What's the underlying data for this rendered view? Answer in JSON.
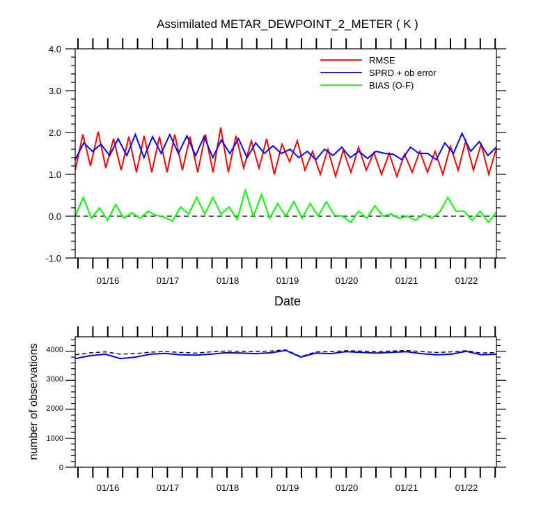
{
  "chart_data": [
    {
      "type": "line",
      "title": "Assimilated METAR_DEWPOINT_2_METER ( K )",
      "xlabel": "Date",
      "ylabel": "",
      "ylim": [
        -1.0,
        4.0
      ],
      "yticks": [
        "4.0",
        "3.0",
        "2.0",
        "1.0",
        "0.0",
        "-1.0"
      ],
      "xticks": [
        "01/16",
        "01/17",
        "01/18",
        "01/19",
        "01/20",
        "01/21",
        "01/22"
      ],
      "legend_position": "top-right",
      "reference_line": {
        "y": 0.0,
        "style": "dashed",
        "color": "#000000"
      },
      "series": [
        {
          "name": "RMSE",
          "color": "#ff0000",
          "values": [
            1.1,
            1.95,
            1.2,
            2.02,
            1.15,
            1.85,
            1.1,
            1.9,
            1.05,
            1.92,
            1.05,
            1.9,
            1.05,
            1.95,
            1.1,
            1.9,
            1.05,
            1.95,
            1.05,
            2.12,
            1.05,
            1.92,
            1.15,
            1.8,
            1.15,
            1.85,
            1.0,
            1.72,
            1.3,
            1.8,
            1.1,
            1.55,
            1.0,
            1.6,
            0.95,
            1.58,
            1.05,
            1.65,
            1.1,
            1.52,
            1.0,
            1.5,
            0.95,
            1.48,
            1.05,
            1.55,
            1.05,
            1.55,
            1.0,
            1.67,
            1.1,
            1.8,
            1.1,
            1.72,
            1.0,
            1.62
          ]
        },
        {
          "name": "SPRD + ob error",
          "color": "#0000ff",
          "values": [
            1.35,
            1.75,
            1.55,
            1.72,
            1.45,
            1.85,
            1.45,
            1.95,
            1.4,
            1.9,
            1.5,
            1.95,
            1.5,
            1.92,
            1.45,
            1.9,
            1.4,
            1.82,
            1.5,
            1.85,
            1.4,
            1.75,
            1.5,
            1.68,
            1.5,
            1.6,
            1.4,
            1.55,
            1.35,
            1.6,
            1.45,
            1.65,
            1.4,
            1.55,
            1.38,
            1.55,
            1.5,
            1.48,
            1.35,
            1.65,
            1.5,
            1.5,
            1.35,
            1.75,
            1.5,
            1.98,
            1.55,
            1.78,
            1.45,
            1.65
          ]
        },
        {
          "name": "BIAS (O-F)",
          "color": "#00ff00",
          "values": [
            0.0,
            0.45,
            -0.05,
            0.2,
            -0.1,
            0.28,
            -0.05,
            0.08,
            -0.05,
            0.12,
            0.02,
            -0.02,
            -0.12,
            0.22,
            0.05,
            0.45,
            0.05,
            0.45,
            0.05,
            0.22,
            -0.08,
            0.62,
            0.0,
            0.52,
            -0.05,
            0.3,
            0.0,
            0.35,
            -0.05,
            0.3,
            0.0,
            0.35,
            0.02,
            0.0,
            -0.15,
            0.12,
            -0.05,
            0.25,
            0.0,
            0.05,
            -0.05,
            0.0,
            -0.1,
            0.05,
            -0.05,
            0.1,
            0.45,
            0.12,
            0.12,
            -0.1,
            0.12,
            -0.15,
            0.1
          ]
        }
      ]
    },
    {
      "type": "line",
      "title": "",
      "xlabel": "",
      "ylabel": "number of observations",
      "ylim": [
        0,
        4500
      ],
      "yticks": [
        "0",
        "1000",
        "2000",
        "3000",
        "4000"
      ],
      "xticks": [
        "01/16",
        "01/17",
        "01/18",
        "01/19",
        "01/20",
        "01/21",
        "01/22"
      ],
      "series": [
        {
          "name": "",
          "color": "#000000",
          "style": "dashed",
          "values": [
            3880,
            3950,
            3980,
            3900,
            3920,
            3970,
            3990,
            3960,
            3940,
            3980,
            4010,
            4000,
            3990,
            4010,
            4050,
            3820,
            3980,
            3990,
            4020,
            4010,
            3990,
            4010,
            4030,
            3990,
            3960,
            3980,
            4020,
            3940,
            3960
          ]
        },
        {
          "name": "",
          "color": "#0000ff",
          "style": "solid",
          "values": [
            3750,
            3850,
            3900,
            3750,
            3800,
            3900,
            3930,
            3880,
            3870,
            3900,
            3950,
            3940,
            3920,
            3950,
            4030,
            3800,
            3940,
            3920,
            3990,
            3960,
            3940,
            3960,
            3990,
            3920,
            3880,
            3900,
            4000,
            3880,
            3900
          ]
        }
      ]
    }
  ]
}
